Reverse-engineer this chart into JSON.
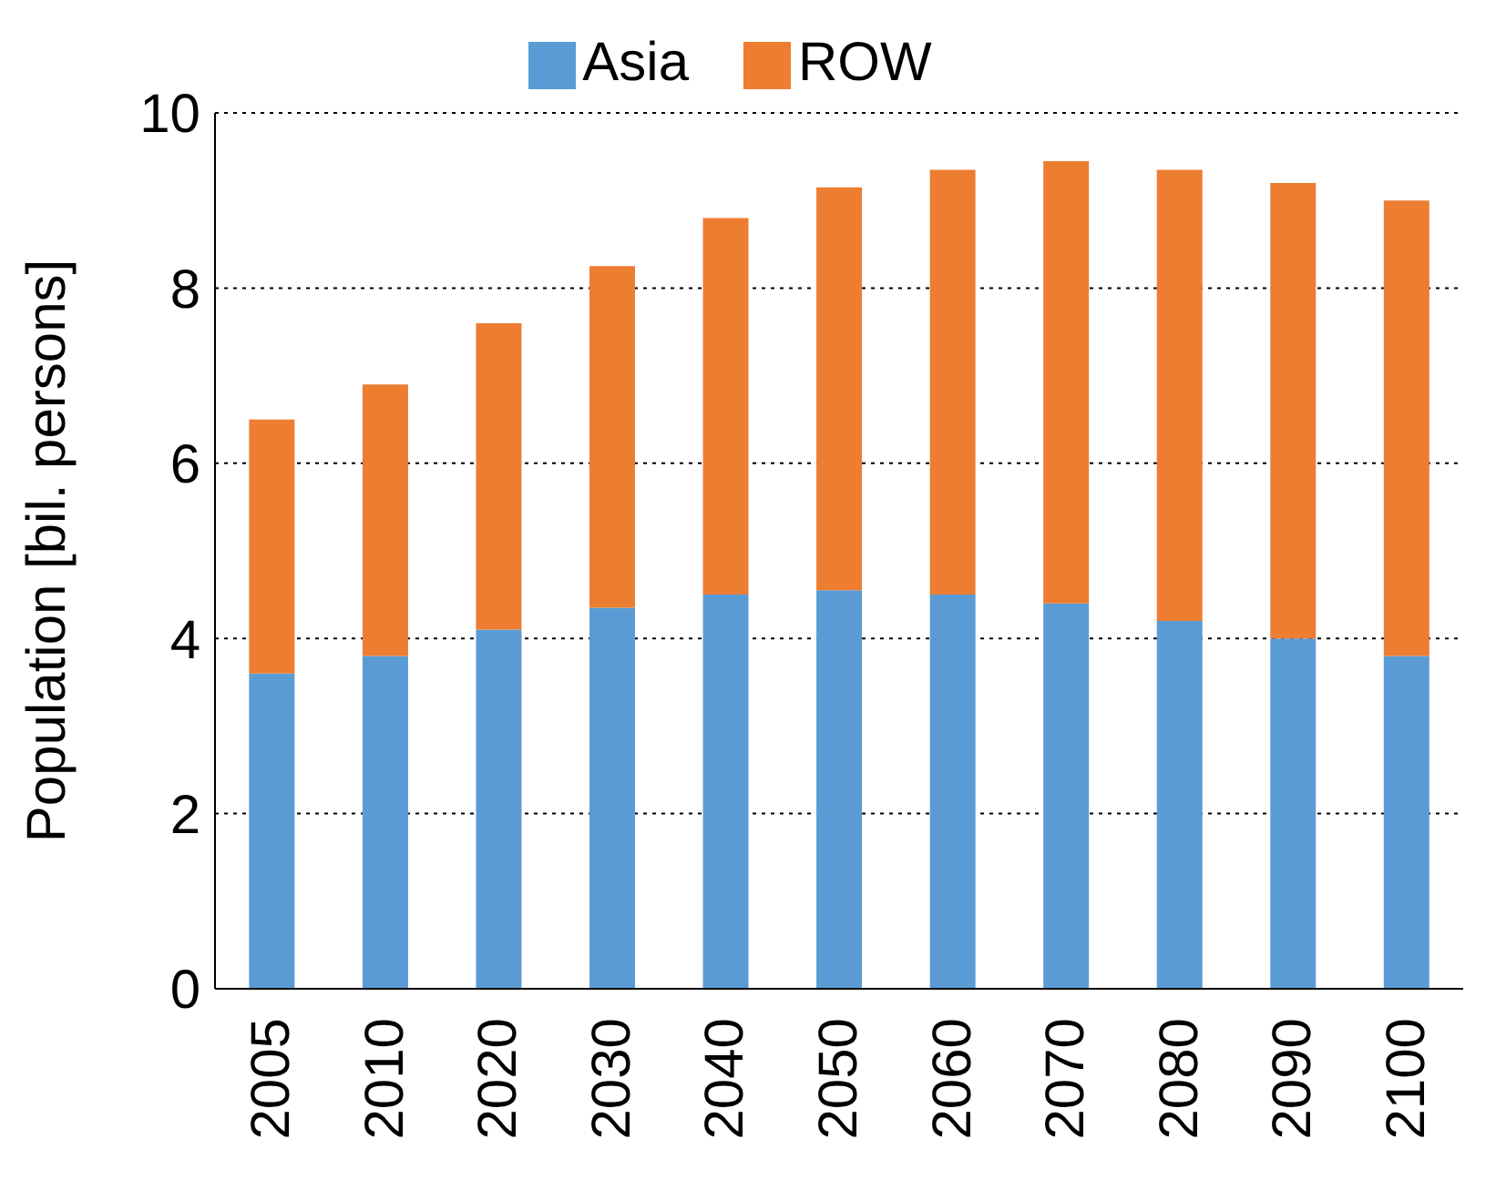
{
  "chart_data": {
    "type": "bar",
    "stacked": true,
    "ylabel": "Population [bil. persons]",
    "categories": [
      "2005",
      "2010",
      "2020",
      "2030",
      "2040",
      "2050",
      "2060",
      "2070",
      "2080",
      "2090",
      "2100"
    ],
    "series": [
      {
        "name": "Asia",
        "color": "#5b9bd5",
        "values": [
          3.6,
          3.8,
          4.1,
          4.35,
          4.5,
          4.55,
          4.5,
          4.4,
          4.2,
          4.0,
          3.8
        ]
      },
      {
        "name": "ROW",
        "color": "#ed7d31",
        "values": [
          2.9,
          3.1,
          3.5,
          3.9,
          4.3,
          4.6,
          4.85,
          5.05,
          5.15,
          5.2,
          5.2
        ]
      }
    ],
    "ylim": [
      0,
      10
    ],
    "yticks": [
      0,
      2,
      4,
      6,
      8,
      10
    ],
    "grid": "y",
    "legend": "top"
  }
}
